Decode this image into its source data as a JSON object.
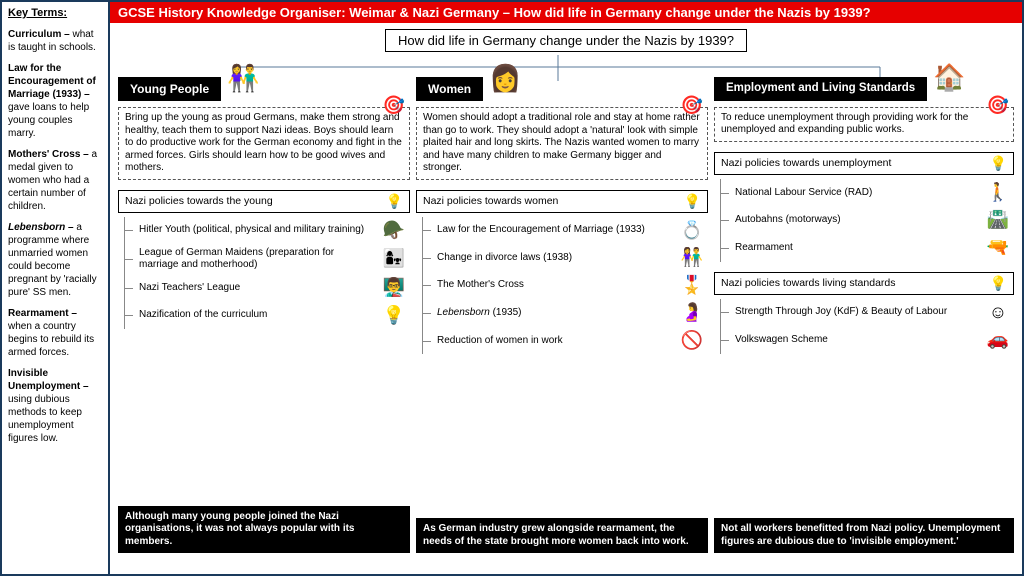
{
  "keyTerms": {
    "title": "Key Terms:",
    "items": [
      {
        "t": "Curriculum –",
        "d": " what is taught in schools."
      },
      {
        "t": "Law for the Encouragement of Marriage (1933) –",
        "d": " gave loans to help young couples marry."
      },
      {
        "t": "Mothers' Cross –",
        "d": " a medal given to women who had a certain number of children."
      },
      {
        "t": "Lebensborn –",
        "d": " a programme where unmarried women could become pregnant by 'racially pure' SS men.",
        "italic": true
      },
      {
        "t": "Rearmament –",
        "d": " when a country begins to rebuild its armed forces."
      },
      {
        "t": "Invisible Unemployment –",
        "d": " using dubious methods to keep unemployment figures low."
      }
    ]
  },
  "header": "GCSE History Knowledge Organiser: Weimar & Nazi Germany – How did life in Germany change under the Nazis by 1939?",
  "centerQ": "How did life in Germany change under the Nazis by 1939?",
  "branches": {
    "young": {
      "label": "Young People",
      "icon": "👫",
      "aim": "Bring up the young as proud Germans, make them strong and healthy, teach them to support Nazi ideas. Boys should learn to do productive work for the German economy and fight in the armed forces. Girls should learn how to be good wives and mothers.",
      "subhead": "Nazi policies towards the young",
      "policies": [
        {
          "t": "Hitler Youth (political, physical and military training)",
          "i": "🪖"
        },
        {
          "t": "League of German Maidens (preparation for marriage and motherhood)",
          "i": "👩‍👧"
        },
        {
          "t": "Nazi Teachers' League",
          "i": "👨‍🏫"
        },
        {
          "t": "Nazification of the curriculum",
          "i": "💡"
        }
      ],
      "footer": "Although many young people joined the Nazi organisations, it was not always popular with its members."
    },
    "women": {
      "label": "Women",
      "icon": "👩",
      "aim": "Women should adopt a traditional role and stay at home rather than go to work. They should adopt a 'natural' look with simple plaited hair and long skirts. The Nazis wanted women to marry and have many children to make Germany bigger and stronger.",
      "subhead": "Nazi policies towards women",
      "policies": [
        {
          "t": "Law for the Encouragement of Marriage (1933)",
          "i": "💍"
        },
        {
          "t": "Change in divorce laws (1938)",
          "i": "👫"
        },
        {
          "t": "The Mother's Cross",
          "i": "🎖️"
        },
        {
          "t": "Lebensborn (1935)",
          "i": "🤰",
          "italic": true
        },
        {
          "t": "Reduction of women in work",
          "i": "🚫"
        }
      ],
      "footer": "As German industry grew alongside rearmament, the needs of the state brought more women back into work."
    },
    "employ": {
      "label": "Employment and Living Standards",
      "icon": "🏠",
      "aim": "To reduce unemployment through providing work for the unemployed and expanding public works.",
      "subhead1": "Nazi policies towards unemployment",
      "policies1": [
        {
          "t": "National Labour Service (RAD)",
          "i": "🚶"
        },
        {
          "t": "Autobahns (motorways)",
          "i": "🛣️"
        },
        {
          "t": "Rearmament",
          "i": "🔫"
        }
      ],
      "subhead2": "Nazi policies towards living standards",
      "policies2": [
        {
          "t": "Strength Through Joy (KdF) & Beauty of Labour",
          "i": "☺"
        },
        {
          "t": "Volkswagen Scheme",
          "i": "🚗"
        }
      ],
      "footer": "Not all workers benefitted from Nazi policy. Unemployment figures are dubious due to 'invisible employment.'"
    }
  }
}
